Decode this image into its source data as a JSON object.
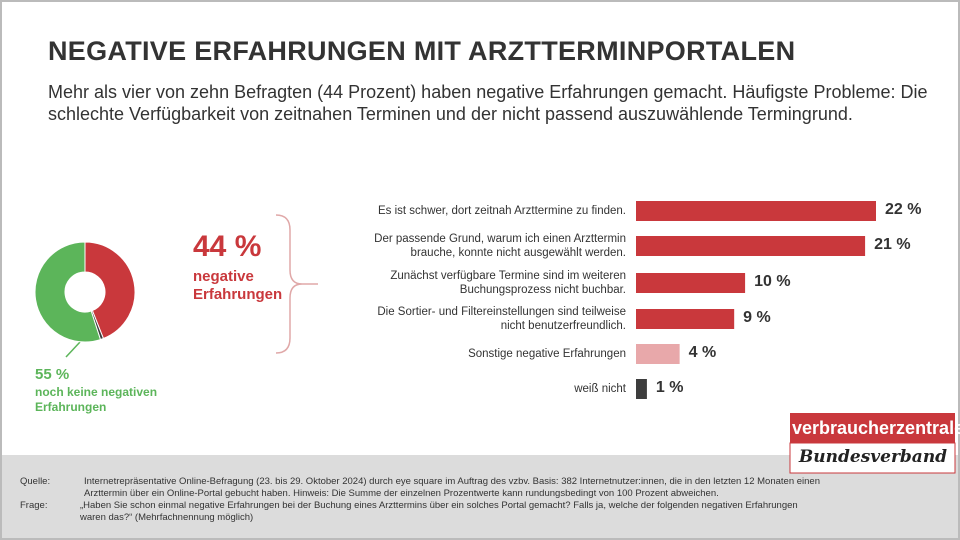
{
  "header": {
    "title": "NEGATIVE ERFAHRUNGEN MIT ARZTTERMINPORTALEN",
    "subtitle": "Mehr als vier von zehn Befragten (44 Prozent) haben negative Erfahrungen gemacht. Häufigste Probleme: Die schlechte Verfügbarkeit von zeitnahen Terminen und der nicht passend auszuwählende Termingrund."
  },
  "chart_data": [
    {
      "type": "pie",
      "categories": [
        "negative Erfahrungen",
        null,
        "noch keine negativen Erfahrungen"
      ],
      "values": [
        44,
        1,
        55
      ],
      "value_labels": [
        "44 %",
        null,
        "55 %"
      ],
      "colors": [
        "#c9383c",
        "#3d3d3d",
        "#5cb55a"
      ]
    },
    {
      "type": "bar",
      "orientation": "horizontal",
      "categories": [
        "Es ist schwer, dort zeitnah Arzttermine zu finden.",
        "Der passende Grund, warum ich einen Arzttermin brauche, konnte nicht ausgewählt werden.",
        "Zunächst verfügbare Termine sind im weiteren Buchungsprozess nicht buchbar.",
        "Die Sortier- und Filtereinstellungen sind teilweise nicht benutzerfreundlich.",
        "Sonstige negative Erfahrungen",
        "weiß nicht"
      ],
      "values": [
        22,
        21,
        10,
        9,
        4,
        1
      ],
      "value_labels": [
        "22 %",
        "21 %",
        "10 %",
        "9 %",
        "4 %",
        "1 %"
      ],
      "colors": [
        "#c9383c",
        "#c9383c",
        "#c9383c",
        "#c9383c",
        "#e8a8aa",
        "#3d3d3d"
      ],
      "xlim": [
        0,
        22
      ]
    }
  ],
  "logo": {
    "name": "verbraucherzentrale",
    "sub": "Bundesverband"
  },
  "footer": {
    "source_label": "Quelle:",
    "source": "Internetrepräsentative Online-Befragung (23. bis 29. Oktober 2024) durch eye square im Auftrag des vzbv. Basis: 382 Internetnutzer:innen, die in den letzten 12 Monaten einen Arzttermin über ein Online-Portal gebucht haben. Hinweis: Die Summe der einzelnen Prozentwerte kann rundungsbedingt von 100 Prozent abweichen.",
    "question_label": "Frage:",
    "question": "„Haben Sie schon einmal negative Erfahrungen bei der Buchung eines Arzttermins über ein solches Portal gemacht? Falls ja, welche der folgenden negativen Erfahrungen waren das?“ (Mehrfachnennung möglich)"
  }
}
